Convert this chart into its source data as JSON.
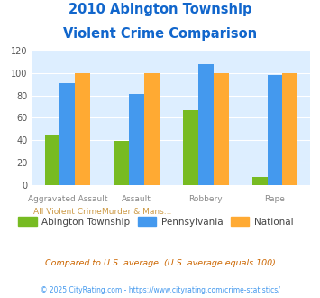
{
  "title_line1": "2010 Abington Township",
  "title_line2": "Violent Crime Comparison",
  "abington": [
    45,
    39,
    67,
    7
  ],
  "pennsylvania": [
    91,
    81,
    108,
    98
  ],
  "national": [
    100,
    100,
    100,
    100
  ],
  "colors": {
    "abington": "#77bb22",
    "pennsylvania": "#4499ee",
    "national": "#ffaa33"
  },
  "ylim": [
    0,
    120
  ],
  "yticks": [
    0,
    20,
    40,
    60,
    80,
    100,
    120
  ],
  "bg_color": "#ddeeff",
  "title_color": "#1166cc",
  "x_top_labels": [
    "Aggravated Assault",
    "Assault",
    "Robbery",
    "Rape"
  ],
  "x_bot_labels": [
    "All Violent Crime",
    "Murder & Mans...",
    "",
    ""
  ],
  "x_top_color": "#888888",
  "x_bot_color": "#cc9944",
  "footnote1": "Compared to U.S. average. (U.S. average equals 100)",
  "footnote2": "© 2025 CityRating.com - https://www.cityrating.com/crime-statistics/",
  "footnote1_color": "#cc6600",
  "footnote2_color": "#4499ee",
  "legend_labels": [
    "Abington Township",
    "Pennsylvania",
    "National"
  ],
  "legend_color": "#444444"
}
